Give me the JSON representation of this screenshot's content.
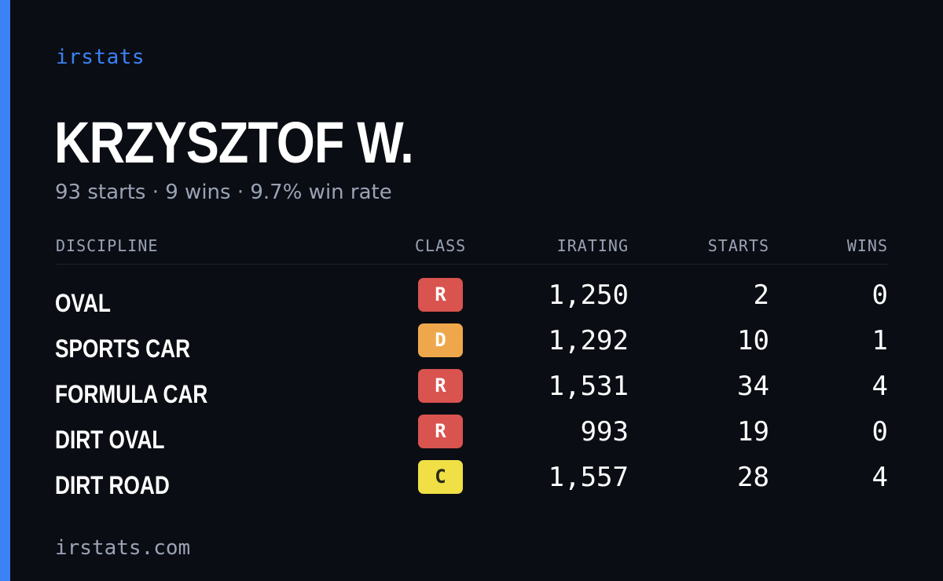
{
  "brand": "irstats",
  "driver": {
    "name": "KRZYSZTOF W.",
    "summary": "93 starts · 9 wins · 9.7% win rate"
  },
  "table": {
    "headers": {
      "discipline": "DISCIPLINE",
      "class": "CLASS",
      "irating": "IRATING",
      "starts": "STARTS",
      "wins": "WINS"
    },
    "rows": [
      {
        "discipline": "OVAL",
        "class": "R",
        "irating": "1,250",
        "starts": "2",
        "wins": "0"
      },
      {
        "discipline": "SPORTS CAR",
        "class": "D",
        "irating": "1,292",
        "starts": "10",
        "wins": "1"
      },
      {
        "discipline": "FORMULA CAR",
        "class": "R",
        "irating": "1,531",
        "starts": "34",
        "wins": "4"
      },
      {
        "discipline": "DIRT OVAL",
        "class": "R",
        "irating": "993",
        "starts": "19",
        "wins": "0"
      },
      {
        "discipline": "DIRT ROAD",
        "class": "C",
        "irating": "1,557",
        "starts": "28",
        "wins": "4"
      }
    ]
  },
  "class_colors": {
    "R": {
      "bg": "#d9534f",
      "fg": "#ffffff"
    },
    "D": {
      "bg": "#eea84b",
      "fg": "#ffffff"
    },
    "C": {
      "bg": "#f0df45",
      "fg": "#2a2a1a"
    }
  },
  "colors": {
    "background": "#0b0d14",
    "accent": "#3b82f6",
    "muted_text": "#9aa3b5"
  },
  "footer": "irstats.com"
}
